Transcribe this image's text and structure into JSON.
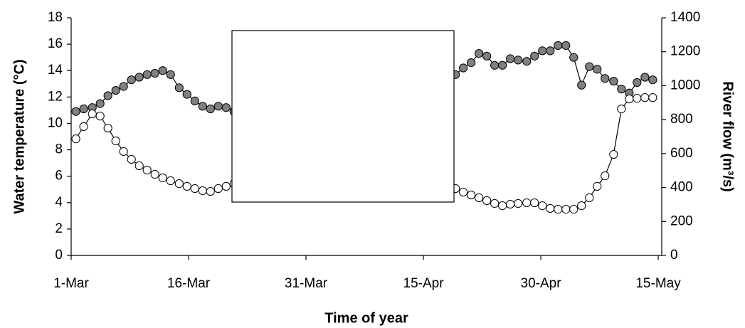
{
  "chart_data": {
    "type": "line",
    "x_label": "Time of year",
    "y_label": "Water temperature (°C)",
    "y2_label": "River flow (m³/s)",
    "xlim": [
      0,
      75.45
    ],
    "xticks": [
      {
        "value": 0,
        "label": "1-Mar"
      },
      {
        "value": 15,
        "label": "16-Mar"
      },
      {
        "value": 30,
        "label": "31-Mar"
      },
      {
        "value": 45,
        "label": "15-Apr"
      },
      {
        "value": 60,
        "label": "30-Apr"
      },
      {
        "value": 75,
        "label": "15-May"
      }
    ],
    "ylim": [
      0,
      18
    ],
    "yticks": [
      0,
      2,
      4,
      6,
      8,
      10,
      12,
      14,
      16,
      18
    ],
    "y2lim": [
      0,
      1400
    ],
    "y2ticks": [
      0,
      200,
      400,
      600,
      800,
      1000,
      1200,
      1400
    ],
    "x": [
      0.6,
      1.6,
      2.7,
      3.7,
      4.7,
      5.7,
      6.7,
      7.7,
      8.7,
      9.7,
      10.7,
      11.7,
      12.7,
      13.8,
      14.8,
      15.8,
      16.8,
      17.8,
      18.8,
      19.8,
      20.8,
      49.1,
      50.1,
      51.1,
      52.1,
      53.1,
      54.1,
      55.1,
      56.1,
      57.1,
      58.2,
      59.2,
      60.2,
      61.2,
      62.2,
      63.2,
      64.2,
      65.2,
      66.2,
      67.2,
      68.2,
      69.3,
      70.3,
      71.3,
      72.3,
      73.3,
      74.3
    ],
    "series": [
      {
        "color": "#808080",
        "axis": "y",
        "values": [
          10.9,
          11.1,
          11.2,
          11.5,
          12.1,
          12.5,
          12.8,
          13.3,
          13.5,
          13.7,
          13.8,
          14.0,
          13.7,
          12.7,
          12.2,
          11.7,
          11.3,
          11.1,
          11.3,
          11.2,
          10.9,
          13.7,
          14.2,
          14.6,
          15.3,
          15.1,
          14.4,
          14.4,
          14.9,
          14.8,
          14.7,
          15.1,
          15.5,
          15.5,
          15.9,
          15.9,
          15.0,
          12.9,
          14.3,
          14.1,
          13.4,
          13.2,
          12.6,
          12.3,
          13.1,
          13.5,
          13.3
        ]
      },
      {
        "color": "#ffffff",
        "axis": "y2",
        "values": [
          687,
          759,
          834,
          821,
          750,
          675,
          612,
          566,
          528,
          503,
          478,
          457,
          440,
          423,
          407,
          394,
          381,
          377,
          394,
          407,
          423,
          394,
          373,
          356,
          340,
          323,
          306,
          293,
          302,
          306,
          310,
          310,
          293,
          277,
          272,
          272,
          272,
          293,
          340,
          407,
          469,
          595,
          863,
          922,
          926,
          930,
          930
        ]
      }
    ]
  }
}
